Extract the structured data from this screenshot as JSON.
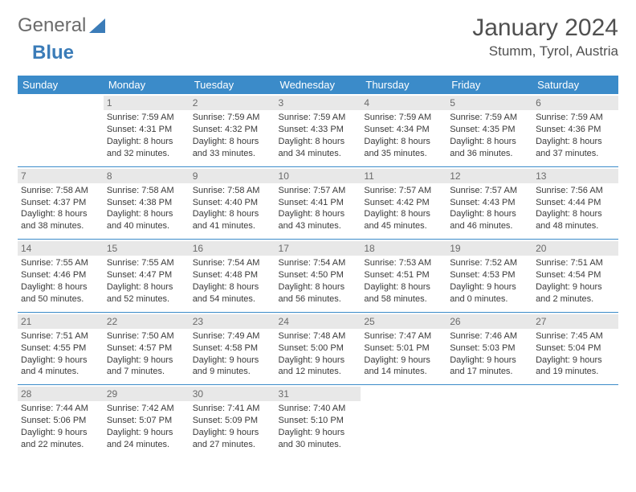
{
  "logo": {
    "word1": "General",
    "word2": "Blue",
    "accent_color": "#3b7cb8"
  },
  "title": "January 2024",
  "location": "Stumm, Tyrol, Austria",
  "colors": {
    "header_bg": "#3b8bc9",
    "header_fg": "#ffffff",
    "daynum_bg": "#e8e8e8",
    "text": "#3a3a3a",
    "rule": "#3b8bc9"
  },
  "day_headers": [
    "Sunday",
    "Monday",
    "Tuesday",
    "Wednesday",
    "Thursday",
    "Friday",
    "Saturday"
  ],
  "weeks": [
    [
      {
        "n": "",
        "sr": "",
        "ss": "",
        "dl": ""
      },
      {
        "n": "1",
        "sr": "Sunrise: 7:59 AM",
        "ss": "Sunset: 4:31 PM",
        "dl": "Daylight: 8 hours and 32 minutes."
      },
      {
        "n": "2",
        "sr": "Sunrise: 7:59 AM",
        "ss": "Sunset: 4:32 PM",
        "dl": "Daylight: 8 hours and 33 minutes."
      },
      {
        "n": "3",
        "sr": "Sunrise: 7:59 AM",
        "ss": "Sunset: 4:33 PM",
        "dl": "Daylight: 8 hours and 34 minutes."
      },
      {
        "n": "4",
        "sr": "Sunrise: 7:59 AM",
        "ss": "Sunset: 4:34 PM",
        "dl": "Daylight: 8 hours and 35 minutes."
      },
      {
        "n": "5",
        "sr": "Sunrise: 7:59 AM",
        "ss": "Sunset: 4:35 PM",
        "dl": "Daylight: 8 hours and 36 minutes."
      },
      {
        "n": "6",
        "sr": "Sunrise: 7:59 AM",
        "ss": "Sunset: 4:36 PM",
        "dl": "Daylight: 8 hours and 37 minutes."
      }
    ],
    [
      {
        "n": "7",
        "sr": "Sunrise: 7:58 AM",
        "ss": "Sunset: 4:37 PM",
        "dl": "Daylight: 8 hours and 38 minutes."
      },
      {
        "n": "8",
        "sr": "Sunrise: 7:58 AM",
        "ss": "Sunset: 4:38 PM",
        "dl": "Daylight: 8 hours and 40 minutes."
      },
      {
        "n": "9",
        "sr": "Sunrise: 7:58 AM",
        "ss": "Sunset: 4:40 PM",
        "dl": "Daylight: 8 hours and 41 minutes."
      },
      {
        "n": "10",
        "sr": "Sunrise: 7:57 AM",
        "ss": "Sunset: 4:41 PM",
        "dl": "Daylight: 8 hours and 43 minutes."
      },
      {
        "n": "11",
        "sr": "Sunrise: 7:57 AM",
        "ss": "Sunset: 4:42 PM",
        "dl": "Daylight: 8 hours and 45 minutes."
      },
      {
        "n": "12",
        "sr": "Sunrise: 7:57 AM",
        "ss": "Sunset: 4:43 PM",
        "dl": "Daylight: 8 hours and 46 minutes."
      },
      {
        "n": "13",
        "sr": "Sunrise: 7:56 AM",
        "ss": "Sunset: 4:44 PM",
        "dl": "Daylight: 8 hours and 48 minutes."
      }
    ],
    [
      {
        "n": "14",
        "sr": "Sunrise: 7:55 AM",
        "ss": "Sunset: 4:46 PM",
        "dl": "Daylight: 8 hours and 50 minutes."
      },
      {
        "n": "15",
        "sr": "Sunrise: 7:55 AM",
        "ss": "Sunset: 4:47 PM",
        "dl": "Daylight: 8 hours and 52 minutes."
      },
      {
        "n": "16",
        "sr": "Sunrise: 7:54 AM",
        "ss": "Sunset: 4:48 PM",
        "dl": "Daylight: 8 hours and 54 minutes."
      },
      {
        "n": "17",
        "sr": "Sunrise: 7:54 AM",
        "ss": "Sunset: 4:50 PM",
        "dl": "Daylight: 8 hours and 56 minutes."
      },
      {
        "n": "18",
        "sr": "Sunrise: 7:53 AM",
        "ss": "Sunset: 4:51 PM",
        "dl": "Daylight: 8 hours and 58 minutes."
      },
      {
        "n": "19",
        "sr": "Sunrise: 7:52 AM",
        "ss": "Sunset: 4:53 PM",
        "dl": "Daylight: 9 hours and 0 minutes."
      },
      {
        "n": "20",
        "sr": "Sunrise: 7:51 AM",
        "ss": "Sunset: 4:54 PM",
        "dl": "Daylight: 9 hours and 2 minutes."
      }
    ],
    [
      {
        "n": "21",
        "sr": "Sunrise: 7:51 AM",
        "ss": "Sunset: 4:55 PM",
        "dl": "Daylight: 9 hours and 4 minutes."
      },
      {
        "n": "22",
        "sr": "Sunrise: 7:50 AM",
        "ss": "Sunset: 4:57 PM",
        "dl": "Daylight: 9 hours and 7 minutes."
      },
      {
        "n": "23",
        "sr": "Sunrise: 7:49 AM",
        "ss": "Sunset: 4:58 PM",
        "dl": "Daylight: 9 hours and 9 minutes."
      },
      {
        "n": "24",
        "sr": "Sunrise: 7:48 AM",
        "ss": "Sunset: 5:00 PM",
        "dl": "Daylight: 9 hours and 12 minutes."
      },
      {
        "n": "25",
        "sr": "Sunrise: 7:47 AM",
        "ss": "Sunset: 5:01 PM",
        "dl": "Daylight: 9 hours and 14 minutes."
      },
      {
        "n": "26",
        "sr": "Sunrise: 7:46 AM",
        "ss": "Sunset: 5:03 PM",
        "dl": "Daylight: 9 hours and 17 minutes."
      },
      {
        "n": "27",
        "sr": "Sunrise: 7:45 AM",
        "ss": "Sunset: 5:04 PM",
        "dl": "Daylight: 9 hours and 19 minutes."
      }
    ],
    [
      {
        "n": "28",
        "sr": "Sunrise: 7:44 AM",
        "ss": "Sunset: 5:06 PM",
        "dl": "Daylight: 9 hours and 22 minutes."
      },
      {
        "n": "29",
        "sr": "Sunrise: 7:42 AM",
        "ss": "Sunset: 5:07 PM",
        "dl": "Daylight: 9 hours and 24 minutes."
      },
      {
        "n": "30",
        "sr": "Sunrise: 7:41 AM",
        "ss": "Sunset: 5:09 PM",
        "dl": "Daylight: 9 hours and 27 minutes."
      },
      {
        "n": "31",
        "sr": "Sunrise: 7:40 AM",
        "ss": "Sunset: 5:10 PM",
        "dl": "Daylight: 9 hours and 30 minutes."
      },
      {
        "n": "",
        "sr": "",
        "ss": "",
        "dl": ""
      },
      {
        "n": "",
        "sr": "",
        "ss": "",
        "dl": ""
      },
      {
        "n": "",
        "sr": "",
        "ss": "",
        "dl": ""
      }
    ]
  ]
}
